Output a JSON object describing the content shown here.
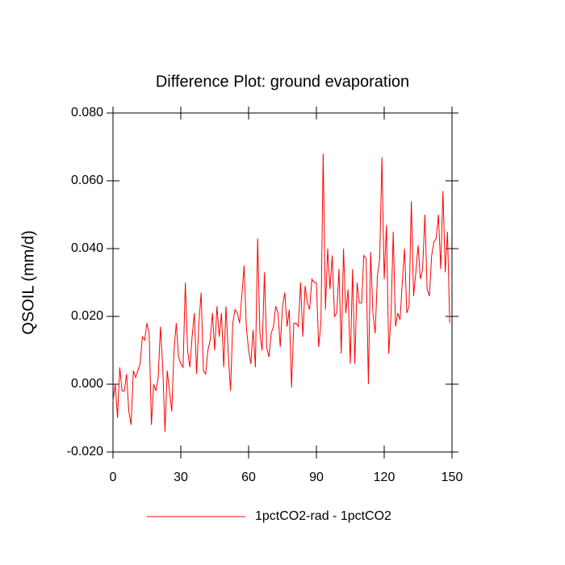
{
  "chart_data": {
    "type": "line",
    "title": "Difference Plot: ground evaporation",
    "ylabel": "QSOIL  (mm/d)",
    "x": [
      0,
      1,
      2,
      3,
      4,
      5,
      6,
      7,
      8,
      9,
      10,
      11,
      12,
      13,
      14,
      15,
      16,
      17,
      18,
      19,
      20,
      21,
      22,
      23,
      24,
      25,
      26,
      27,
      28,
      29,
      30,
      31,
      32,
      33,
      34,
      35,
      36,
      37,
      38,
      39,
      40,
      41,
      42,
      43,
      44,
      45,
      46,
      47,
      48,
      49,
      50,
      51,
      52,
      53,
      54,
      55,
      56,
      57,
      58,
      59,
      60,
      61,
      62,
      63,
      64,
      65,
      66,
      67,
      68,
      69,
      70,
      71,
      72,
      73,
      74,
      75,
      76,
      77,
      78,
      79,
      80,
      81,
      82,
      83,
      84,
      85,
      86,
      87,
      88,
      89,
      90,
      91,
      92,
      93,
      94,
      95,
      96,
      97,
      98,
      99,
      100,
      101,
      102,
      103,
      104,
      105,
      106,
      107,
      108,
      109,
      110,
      111,
      112,
      113,
      114,
      115,
      116,
      117,
      118,
      119,
      120,
      121,
      122,
      123,
      124,
      125,
      126,
      127,
      128,
      129,
      130,
      131,
      132,
      133,
      134,
      135,
      136,
      137,
      138,
      139,
      140,
      141,
      142,
      143,
      144,
      145,
      146,
      147,
      148,
      149
    ],
    "series": [
      {
        "name": "1pctCO2-rad - 1pctCO2",
        "color": "#ff0000",
        "values": [
          -0.005,
          0.0,
          -0.01,
          0.005,
          -0.002,
          -0.002,
          0.003,
          -0.008,
          -0.012,
          0.004,
          0.002,
          0.004,
          0.006,
          0.014,
          0.013,
          0.018,
          0.015,
          -0.012,
          0.0,
          -0.002,
          0.002,
          0.017,
          0.005,
          -0.014,
          0.004,
          -0.002,
          -0.008,
          0.01,
          0.018,
          0.008,
          0.006,
          0.005,
          0.03,
          0.01,
          0.005,
          0.014,
          0.021,
          0.003,
          0.018,
          0.027,
          0.004,
          0.003,
          0.01,
          0.013,
          0.021,
          0.01,
          0.023,
          0.014,
          0.021,
          0.005,
          0.023,
          0.009,
          -0.002,
          0.018,
          0.022,
          0.021,
          0.018,
          0.026,
          0.035,
          0.017,
          0.01,
          0.006,
          0.016,
          0.005,
          0.043,
          0.015,
          0.01,
          0.033,
          0.011,
          0.008,
          0.015,
          0.017,
          0.023,
          0.021,
          0.011,
          0.023,
          0.027,
          0.017,
          0.022,
          -0.001,
          0.018,
          0.018,
          0.017,
          0.03,
          0.014,
          0.029,
          0.024,
          0.022,
          0.031,
          0.03,
          0.03,
          0.011,
          0.018,
          0.068,
          0.022,
          0.04,
          0.028,
          0.038,
          0.02,
          0.021,
          0.034,
          0.009,
          0.04,
          0.021,
          0.028,
          0.006,
          0.034,
          0.006,
          0.03,
          0.024,
          0.024,
          0.038,
          0.037,
          0.0,
          0.039,
          0.021,
          0.015,
          0.032,
          0.037,
          0.067,
          0.031,
          0.047,
          0.009,
          0.02,
          0.045,
          0.017,
          0.021,
          0.019,
          0.03,
          0.04,
          0.021,
          0.023,
          0.054,
          0.026,
          0.033,
          0.041,
          0.031,
          0.034,
          0.05,
          0.028,
          0.026,
          0.038,
          0.042,
          0.043,
          0.05,
          0.034,
          0.057,
          0.033,
          0.045,
          0.018
        ]
      }
    ],
    "xlim": [
      0,
      150
    ],
    "xticks": [
      0,
      30,
      60,
      90,
      120,
      150
    ],
    "ylim": [
      -0.02,
      0.08
    ],
    "yticks": [
      {
        "value": -0.02,
        "label": "-0.020"
      },
      {
        "value": 0,
        "label": "0.000"
      },
      {
        "value": 0.02,
        "label": "0.020"
      },
      {
        "value": 0.04,
        "label": "0.040"
      },
      {
        "value": 0.06,
        "label": "0.060"
      },
      {
        "value": 0.08,
        "label": "0.080"
      }
    ],
    "grid": false,
    "legend": "bottom"
  }
}
